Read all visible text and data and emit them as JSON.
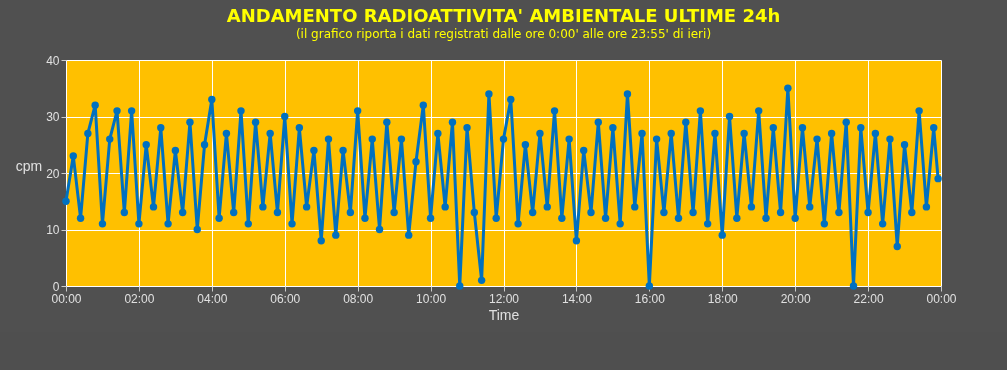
{
  "chart_data": {
    "type": "line",
    "title": "ANDAMENTO RADIOATTIVITA' AMBIENTALE ULTIME 24h",
    "subtitle": "(il grafico riporta i dati registrati dalle ore 0:00' alle ore 23:55' di ieri)",
    "xlabel": "Time",
    "ylabel": "cpm",
    "x": [
      0,
      0.2,
      0.4,
      0.6,
      0.8,
      1,
      1.2,
      1.4,
      1.6,
      1.8,
      2,
      2.2,
      2.4,
      2.6,
      2.8,
      3,
      3.2,
      3.4,
      3.6,
      3.8,
      4,
      4.2,
      4.4,
      4.6,
      4.8,
      5,
      5.2,
      5.4,
      5.6,
      5.8,
      6,
      6.2,
      6.4,
      6.6,
      6.8,
      7,
      7.2,
      7.4,
      7.6,
      7.8,
      8,
      8.2,
      8.4,
      8.6,
      8.8,
      9,
      9.2,
      9.4,
      9.6,
      9.8,
      10,
      10.2,
      10.4,
      10.6,
      10.8,
      11,
      11.2,
      11.4,
      11.6,
      11.8,
      12,
      12.2,
      12.4,
      12.6,
      12.8,
      13,
      13.2,
      13.4,
      13.6,
      13.8,
      14,
      14.2,
      14.4,
      14.6,
      14.8,
      15,
      15.2,
      15.4,
      15.6,
      15.8,
      16,
      16.2,
      16.4,
      16.6,
      16.8,
      17,
      17.2,
      17.4,
      17.6,
      17.8,
      18,
      18.2,
      18.4,
      18.6,
      18.8,
      19,
      19.2,
      19.4,
      19.6,
      19.8,
      20,
      20.2,
      20.4,
      20.6,
      20.8,
      21,
      21.2,
      21.4,
      21.6,
      21.8,
      22,
      22.2,
      22.4,
      22.6,
      22.8,
      23,
      23.2,
      23.4,
      23.6,
      23.8,
      23.92
    ],
    "series": [
      {
        "color": "#0070c0",
        "values": [
          15,
          23,
          12,
          27,
          32,
          11,
          26,
          31,
          13,
          31,
          11,
          25,
          14,
          28,
          11,
          24,
          13,
          29,
          10,
          25,
          33,
          12,
          27,
          13,
          31,
          11,
          29,
          14,
          27,
          13,
          30,
          11,
          28,
          14,
          24,
          8,
          26,
          9,
          24,
          13,
          31,
          12,
          26,
          10,
          29,
          13,
          26,
          9,
          22,
          32,
          12,
          27,
          14,
          29,
          0,
          28,
          13,
          1,
          34,
          12,
          26,
          33,
          11,
          25,
          13,
          27,
          14,
          31,
          12,
          26,
          8,
          24,
          13,
          29,
          12,
          28,
          11,
          34,
          14,
          27,
          0,
          26,
          13,
          27,
          12,
          29,
          13,
          31,
          11,
          27,
          9,
          30,
          12,
          27,
          14,
          31,
          12,
          28,
          13,
          35,
          12,
          28,
          14,
          26,
          11,
          27,
          13,
          29,
          0,
          28,
          13,
          27,
          11,
          26,
          7,
          25,
          13,
          31,
          14,
          28,
          19
        ]
      }
    ],
    "xlim": [
      0,
      24
    ],
    "xticks": [
      {
        "value": 0,
        "label": "00:00"
      },
      {
        "value": 2,
        "label": "02:00"
      },
      {
        "value": 4,
        "label": "04:00"
      },
      {
        "value": 6,
        "label": "06:00"
      },
      {
        "value": 8,
        "label": "08:00"
      },
      {
        "value": 10,
        "label": "10:00"
      },
      {
        "value": 12,
        "label": "12:00"
      },
      {
        "value": 14,
        "label": "14:00"
      },
      {
        "value": 16,
        "label": "16:00"
      },
      {
        "value": 18,
        "label": "18:00"
      },
      {
        "value": 20,
        "label": "20:00"
      },
      {
        "value": 22,
        "label": "22:00"
      },
      {
        "value": 24,
        "label": "00:00"
      }
    ],
    "ylim": [
      0,
      40
    ],
    "yticks": [
      0,
      10,
      20,
      30,
      40
    ],
    "grid": true,
    "marker": "circle",
    "line_style": "solid"
  }
}
